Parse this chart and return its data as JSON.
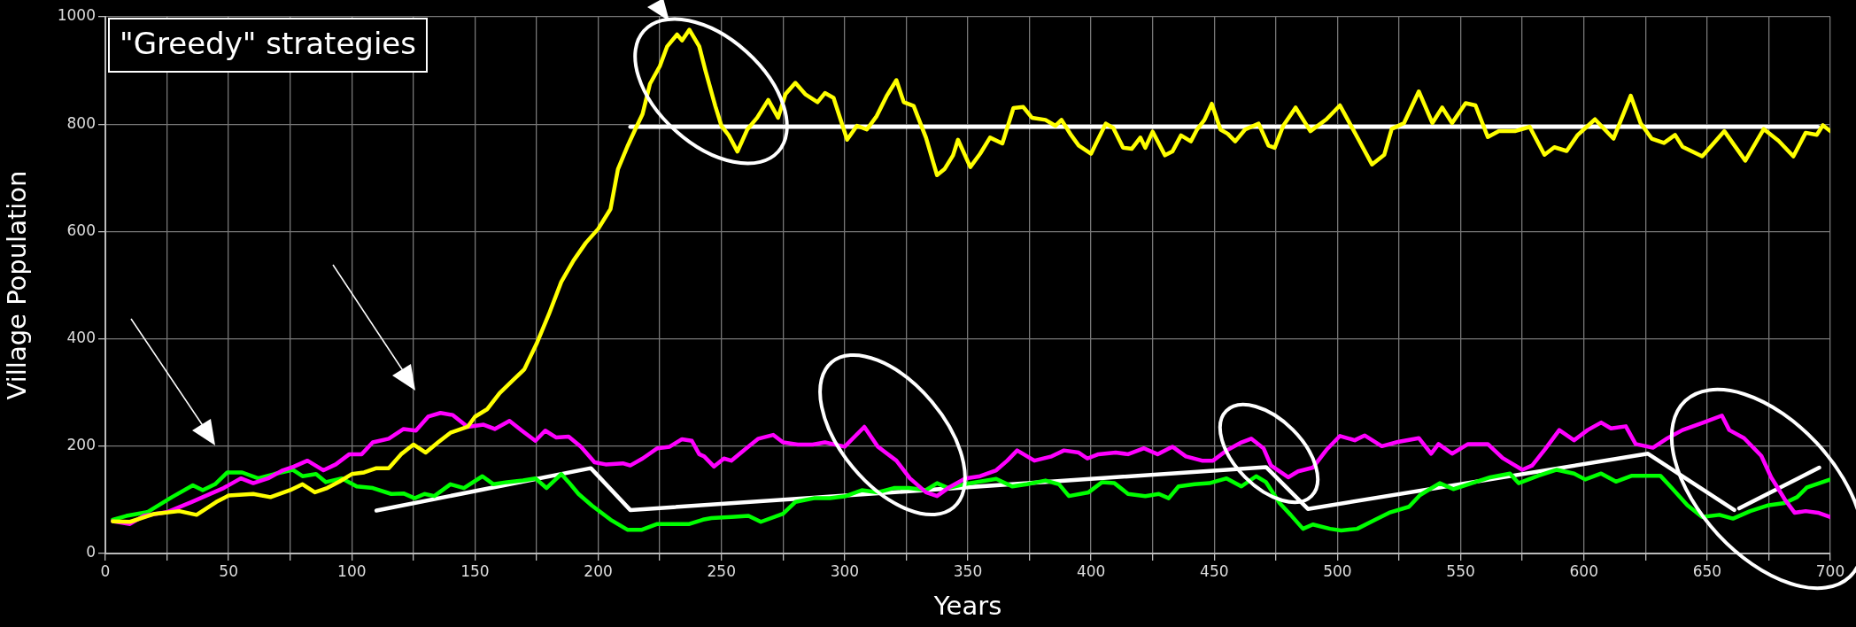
{
  "chart_data": {
    "type": "line",
    "title": "\"Greedy\" strategies",
    "xlabel": "Years",
    "ylabel": "Village Population",
    "xlim": [
      0,
      700
    ],
    "ylim": [
      0,
      1000
    ],
    "xticks": [
      0,
      {
        "value": 25,
        "label": null
      },
      50,
      {
        "value": 75,
        "label": null
      },
      100,
      {
        "value": 125,
        "label": null
      },
      150,
      {
        "value": 175,
        "label": null
      },
      200,
      {
        "value": 225,
        "label": null
      },
      250,
      {
        "value": 275,
        "label": null
      },
      300,
      {
        "value": 325,
        "label": null
      },
      350,
      {
        "value": 375,
        "label": null
      },
      400,
      {
        "value": 425,
        "label": null
      },
      450,
      {
        "value": 475,
        "label": null
      },
      500,
      {
        "value": 525,
        "label": null
      },
      550,
      {
        "value": 575,
        "label": null
      },
      600,
      {
        "value": 625,
        "label": null
      },
      650,
      {
        "value": 675,
        "label": null
      },
      700
    ],
    "yticks": [
      0,
      200,
      400,
      600,
      800,
      1000
    ],
    "grid": true,
    "legend": false,
    "marker": "none",
    "line_style": "solid",
    "series": [
      {
        "color": "#ffff00",
        "x": [
          3,
          10,
          20,
          30,
          37,
          45,
          50,
          60,
          67,
          75,
          80,
          85,
          90,
          95,
          100,
          105,
          110,
          115,
          120,
          125,
          130,
          135,
          140,
          147,
          150,
          155,
          160,
          165,
          170,
          175,
          180,
          185,
          190,
          195,
          200,
          205,
          208,
          212,
          215,
          218,
          221,
          225,
          228,
          232,
          234,
          237,
          241,
          243.5,
          247.5,
          250,
          253,
          256.5,
          260.5,
          264.5,
          269,
          273,
          276,
          280,
          284,
          289,
          292,
          295.5,
          301,
          305,
          309,
          313,
          317,
          321,
          324,
          328,
          333,
          337.5,
          340.5,
          344,
          346,
          351,
          355,
          359,
          364,
          368.5,
          372.5,
          376,
          381.5,
          385.5,
          388,
          392,
          395,
          400,
          402,
          406,
          409,
          413,
          416.5,
          420,
          422,
          425,
          430,
          433,
          436.5,
          440.5,
          443,
          446,
          449,
          452.5,
          455.5,
          458.5,
          462.5,
          468,
          472,
          474.5,
          478,
          483,
          489,
          495.5,
          501,
          508,
          514,
          519,
          522,
          527,
          533,
          538.5,
          542.5,
          546.5,
          552,
          556,
          561,
          565.5,
          572,
          578,
          584,
          588,
          593,
          597.5,
          604.5,
          612,
          619,
          623,
          627.5,
          632.5,
          637,
          640,
          648,
          657,
          661,
          665.5,
          673,
          679,
          685,
          690,
          694.5,
          697,
          700
        ],
        "values": [
          60,
          59,
          74,
          79,
          72,
          96,
          108,
          111,
          105,
          118,
          129,
          114,
          122,
          134,
          148,
          151,
          159,
          159,
          185,
          203,
          188,
          207,
          225,
          236,
          255,
          269,
          299,
          321,
          343,
          391,
          446,
          506,
          546,
          579,
          605,
          642,
          716,
          760,
          790,
          819,
          875,
          908,
          945,
          967,
          956,
          976,
          945,
          900,
          834,
          797,
          779,
          749,
          790,
          812,
          845,
          812,
          856,
          877,
          856,
          841,
          858,
          849,
          771,
          797,
          790,
          815,
          852,
          882,
          841,
          834,
          775,
          705,
          716,
          742,
          771,
          720,
          745,
          775,
          764,
          830,
          832,
          812,
          808,
          797,
          808,
          779,
          760,
          745,
          764,
          801,
          793,
          756,
          754,
          775,
          756,
          786,
          742,
          749,
          779,
          768,
          790,
          808,
          838,
          790,
          782,
          768,
          790,
          801,
          760,
          756,
          797,
          831,
          787,
          809,
          835,
          776,
          725,
          743,
          791,
          802,
          861,
          802,
          831,
          802,
          839,
          835,
          776,
          787,
          787,
          795,
          743,
          757,
          750,
          780,
          809,
          773,
          853,
          802,
          773,
          765,
          780,
          758,
          740,
          787,
          761,
          732,
          791,
          769,
          740,
          784,
          780,
          798,
          787
        ]
      },
      {
        "color": "#ff00ff",
        "x": [
          3,
          10,
          15.5,
          25,
          35,
          43,
          48,
          55,
          60,
          66,
          72,
          76.5,
          82,
          88.5,
          93.5,
          99,
          104,
          108.5,
          115,
          121,
          126,
          131,
          136,
          141,
          147,
          153.5,
          158,
          164,
          169,
          174.5,
          178.5,
          183,
          188,
          193,
          198.5,
          203,
          210,
          213,
          218,
          224,
          229,
          234,
          238,
          241,
          243,
          247,
          251,
          254,
          259,
          265,
          271,
          275,
          281,
          287,
          292,
          300,
          308,
          313.5,
          321,
          326.5,
          333,
          337.5,
          342,
          349,
          355,
          361.5,
          366,
          370,
          377,
          384,
          389,
          395,
          398.5,
          403,
          410,
          415,
          421.5,
          427,
          433,
          438.5,
          445,
          449.5,
          455,
          461,
          465,
          470,
          473,
          480,
          484,
          490,
          495.5,
          501,
          507,
          511,
          518,
          524.5,
          533,
          538,
          541,
          546.5,
          553,
          561,
          567,
          575,
          579,
          584,
          590,
          596,
          601.5,
          607,
          611,
          617,
          621,
          628,
          634,
          640,
          648.5,
          656,
          659,
          665,
          672,
          676,
          681.5,
          685.5,
          690,
          695,
          700
        ],
        "values": [
          60,
          55,
          70,
          77,
          96,
          112,
          122,
          140,
          131,
          140,
          155,
          162,
          173,
          155,
          166,
          185,
          185,
          207,
          214,
          232,
          229,
          255,
          262,
          258,
          236,
          240,
          232,
          247,
          229,
          210,
          229,
          216,
          218,
          199,
          170,
          166,
          168,
          164,
          177,
          196,
          199,
          213,
          210,
          185,
          181,
          162,
          177,
          173,
          192,
          214,
          221,
          207,
          203,
          203,
          207,
          199,
          236,
          199,
          173,
          140,
          114,
          107,
          122,
          140,
          144,
          155,
          173,
          192,
          173,
          181,
          192,
          188,
          177,
          185,
          188,
          185,
          196,
          185,
          199,
          181,
          173,
          173,
          192,
          207,
          214,
          196,
          164,
          142,
          153,
          160,
          193,
          219,
          211,
          220,
          200,
          208,
          215,
          186,
          204,
          186,
          204,
          204,
          178,
          156,
          164,
          193,
          230,
          211,
          230,
          244,
          233,
          237,
          204,
          197,
          215,
          230,
          244,
          257,
          230,
          215,
          182,
          142,
          101,
          76,
          79,
          76,
          68
        ]
      },
      {
        "color": "#00ff00",
        "x": [
          3,
          8.5,
          17,
          27,
          35.5,
          39.5,
          44.5,
          49.5,
          55.5,
          62,
          68.5,
          76,
          80,
          85.5,
          89.5,
          96,
          102,
          108.5,
          116,
          121,
          125.5,
          129.5,
          133.5,
          140,
          145.5,
          153,
          157.5,
          163,
          169.5,
          174.5,
          179,
          185,
          188,
          192,
          197.5,
          205,
          212,
          217.5,
          224,
          230.5,
          237,
          242.5,
          246,
          254,
          261,
          266,
          275,
          280,
          287.5,
          294,
          300.5,
          307,
          313.5,
          320,
          326,
          333,
          337.5,
          342,
          348.5,
          355,
          361.5,
          368,
          374,
          381.5,
          387,
          391,
          399,
          404.5,
          409.5,
          415,
          422,
          427.5,
          431.5,
          435.5,
          442,
          448,
          455,
          461,
          467,
          471,
          476.5,
          481,
          486,
          490,
          497,
          501.5,
          508,
          514.5,
          521,
          529,
          533.5,
          541.5,
          547,
          554.5,
          562,
          570,
          573.5,
          581.5,
          589,
          596,
          600.5,
          607,
          613,
          619.5,
          626,
          631,
          635.5,
          642,
          648,
          655,
          660.5,
          667.5,
          675,
          681.5,
          686.5,
          690.5,
          695.5,
          700
        ],
        "values": [
          63,
          70,
          77,
          105,
          127,
          118,
          129,
          151,
          151,
          140,
          148,
          156,
          144,
          148,
          133,
          140,
          125,
          122,
          111,
          112,
          103,
          111,
          107,
          129,
          122,
          144,
          129,
          133,
          136,
          140,
          122,
          148,
          133,
          111,
          89,
          63,
          44,
          44,
          55,
          55,
          55,
          63,
          66,
          68,
          70,
          59,
          74,
          96,
          103,
          103,
          107,
          118,
          114,
          122,
          122,
          118,
          131,
          122,
          129,
          134,
          139,
          125,
          129,
          136,
          129,
          107,
          114,
          133,
          131,
          111,
          107,
          111,
          103,
          125,
          129,
          131,
          140,
          125,
          144,
          133,
          94,
          72,
          46,
          54,
          46,
          43,
          46,
          61,
          76,
          87,
          109,
          131,
          120,
          131,
          142,
          149,
          131,
          145,
          156,
          149,
          138,
          149,
          134,
          145,
          145,
          145,
          123,
          90,
          68,
          72,
          65,
          79,
          90,
          94,
          105,
          123,
          131,
          138
        ]
      },
      {
        "color": "#ffffff",
        "x": [
          213,
          695
        ],
        "values": [
          795,
          795
        ]
      },
      {
        "color": "#ffffff",
        "x": [
          110,
          197,
          213,
          471,
          488,
          626,
          661,
          662,
          663,
          695.5
        ],
        "values": [
          80,
          159,
          81,
          161,
          83,
          186,
          81,
          null,
          84,
          160
        ]
      }
    ]
  }
}
